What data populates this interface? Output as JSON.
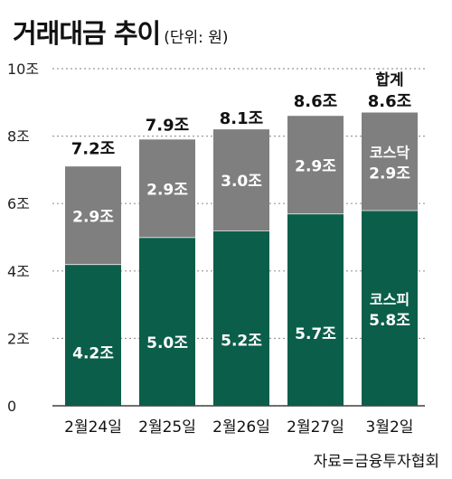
{
  "title": "거래대금 추이",
  "subtitle": "(단위: 원)",
  "source": "자료=금융투자협회",
  "chart_data": {
    "type": "bar",
    "stacked": true,
    "title": "거래대금 추이",
    "subtitle": "(단위: 원)",
    "categories": [
      "2월24일",
      "2월25일",
      "2월26일",
      "2월27일",
      "3월2일"
    ],
    "series": [
      {
        "name": "코스피",
        "values": [
          4.2,
          5.0,
          5.2,
          5.7,
          5.8
        ],
        "color": "#0b5e4a"
      },
      {
        "name": "코스닥",
        "values": [
          2.9,
          2.9,
          3.0,
          2.9,
          2.9
        ],
        "color": "#7f7f7f"
      }
    ],
    "segment_labels": [
      [
        "4.2조",
        "5.0조",
        "5.2조",
        "5.7조",
        "5.8조"
      ],
      [
        "2.9조",
        "2.9조",
        "3.0조",
        "2.9조",
        "2.9조"
      ]
    ],
    "totals": [
      7.2,
      7.9,
      8.1,
      8.6,
      8.6
    ],
    "total_labels": [
      "7.2조",
      "7.9조",
      "8.1조",
      "8.6조",
      "8.6조"
    ],
    "total_legend_label": "합계",
    "series_legend_in_last_bar": true,
    "ylim": [
      0,
      10
    ],
    "yticks": [
      0,
      2,
      4,
      6,
      8,
      10
    ],
    "ytick_labels": [
      "0",
      "2조",
      "4조",
      "6조",
      "8조",
      "10조"
    ],
    "grid": "dotted horizontal",
    "xlabel": "",
    "ylabel": ""
  }
}
